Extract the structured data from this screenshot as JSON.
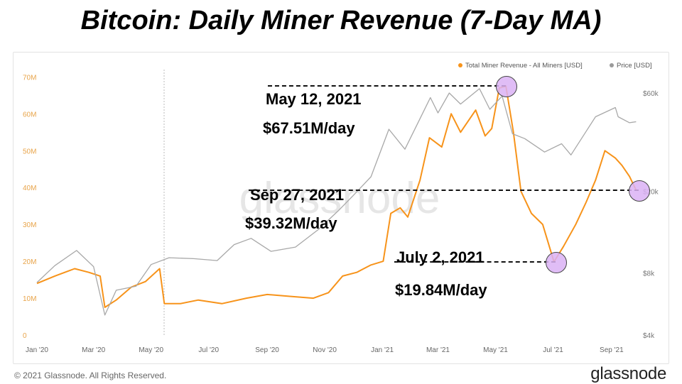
{
  "title": "Bitcoin: Daily Miner Revenue (7-Day MA)",
  "footer": {
    "copyright": "© 2021 Glassnode. All Rights Reserved.",
    "logo": "glassnode"
  },
  "watermark": "glassnode",
  "colors": {
    "revenue": "#f7931a",
    "price": "#a8a8a8",
    "highlight": "#dcb6f5",
    "annotation_line": "#111111"
  },
  "chart_data": {
    "type": "line",
    "legend": [
      {
        "name": "Total Miner Revenue - All Miners [USD]",
        "color": "#f7931a"
      },
      {
        "name": "Price [USD]",
        "color": "#9a9a9a"
      }
    ],
    "legend_position": "top-right",
    "x_ticks": [
      "Jan '20",
      "Mar '20",
      "May '20",
      "Jul '20",
      "Sep '20",
      "Nov '20",
      "Jan '21",
      "Mar '21",
      "May '21",
      "Jul '21",
      "Sep '21"
    ],
    "y_left": {
      "ticks": [
        "0",
        "10M",
        "20M",
        "30M",
        "40M",
        "50M",
        "60M",
        "70M"
      ],
      "range": [
        0,
        72000000
      ]
    },
    "y_right": {
      "ticks": [
        "$4k",
        "$8k",
        "$20k",
        "$60k"
      ],
      "scale": "log"
    },
    "series": [
      {
        "name": "Total Miner Revenue - All Miners [USD]",
        "axis": "left",
        "points": [
          [
            "2020-01-01",
            14.0
          ],
          [
            "2020-01-20",
            16.0
          ],
          [
            "2020-02-10",
            18.0
          ],
          [
            "2020-02-25",
            17.0
          ],
          [
            "2020-03-08",
            16.0
          ],
          [
            "2020-03-13",
            7.5
          ],
          [
            "2020-03-25",
            9.5
          ],
          [
            "2020-04-10",
            13.0
          ],
          [
            "2020-04-25",
            14.5
          ],
          [
            "2020-05-10",
            18.0
          ],
          [
            "2020-05-15",
            8.5
          ],
          [
            "2020-06-01",
            8.5
          ],
          [
            "2020-06-20",
            9.5
          ],
          [
            "2020-07-15",
            8.5
          ],
          [
            "2020-08-10",
            10.0
          ],
          [
            "2020-09-01",
            11.0
          ],
          [
            "2020-09-25",
            10.5
          ],
          [
            "2020-10-20",
            10.0
          ],
          [
            "2020-11-05",
            11.5
          ],
          [
            "2020-11-20",
            16.0
          ],
          [
            "2020-12-05",
            17.0
          ],
          [
            "2020-12-20",
            19.0
          ],
          [
            "2021-01-02",
            20.0
          ],
          [
            "2021-01-10",
            33.0
          ],
          [
            "2021-01-20",
            34.5
          ],
          [
            "2021-01-28",
            32.0
          ],
          [
            "2021-02-10",
            42.0
          ],
          [
            "2021-02-20",
            53.5
          ],
          [
            "2021-03-05",
            51.0
          ],
          [
            "2021-03-15",
            60.0
          ],
          [
            "2021-03-25",
            55.0
          ],
          [
            "2021-04-10",
            61.0
          ],
          [
            "2021-04-20",
            54.0
          ],
          [
            "2021-04-27",
            56.0
          ],
          [
            "2021-05-05",
            67.0
          ],
          [
            "2021-05-12",
            67.51
          ],
          [
            "2021-05-20",
            55.0
          ],
          [
            "2021-05-28",
            39.0
          ],
          [
            "2021-06-08",
            33.0
          ],
          [
            "2021-06-20",
            30.0
          ],
          [
            "2021-07-02",
            19.84
          ],
          [
            "2021-07-12",
            24.0
          ],
          [
            "2021-07-25",
            30.0
          ],
          [
            "2021-08-05",
            36.0
          ],
          [
            "2021-08-15",
            42.0
          ],
          [
            "2021-08-25",
            50.0
          ],
          [
            "2021-09-05",
            48.0
          ],
          [
            "2021-09-12",
            46.0
          ],
          [
            "2021-09-20",
            43.0
          ],
          [
            "2021-09-27",
            39.32
          ]
        ]
      },
      {
        "name": "Price [USD]",
        "axis": "right",
        "points": [
          [
            "2020-01-01",
            7200
          ],
          [
            "2020-01-20",
            8700
          ],
          [
            "2020-02-12",
            10300
          ],
          [
            "2020-03-01",
            8600
          ],
          [
            "2020-03-13",
            5000
          ],
          [
            "2020-03-25",
            6600
          ],
          [
            "2020-04-15",
            6900
          ],
          [
            "2020-05-01",
            8800
          ],
          [
            "2020-05-20",
            9500
          ],
          [
            "2020-06-15",
            9400
          ],
          [
            "2020-07-10",
            9200
          ],
          [
            "2020-07-28",
            11000
          ],
          [
            "2020-08-15",
            11800
          ],
          [
            "2020-09-05",
            10200
          ],
          [
            "2020-10-01",
            10700
          ],
          [
            "2020-10-25",
            13000
          ],
          [
            "2020-11-15",
            16000
          ],
          [
            "2020-12-01",
            19000
          ],
          [
            "2020-12-20",
            23500
          ],
          [
            "2021-01-08",
            40000
          ],
          [
            "2021-01-25",
            32000
          ],
          [
            "2021-02-10",
            45000
          ],
          [
            "2021-02-21",
            57000
          ],
          [
            "2021-03-01",
            48000
          ],
          [
            "2021-03-13",
            60000
          ],
          [
            "2021-03-25",
            53000
          ],
          [
            "2021-04-14",
            63000
          ],
          [
            "2021-04-25",
            50000
          ],
          [
            "2021-05-08",
            58000
          ],
          [
            "2021-05-19",
            38000
          ],
          [
            "2021-06-01",
            36000
          ],
          [
            "2021-06-22",
            31000
          ],
          [
            "2021-07-10",
            34000
          ],
          [
            "2021-07-20",
            30000
          ],
          [
            "2021-08-05",
            39000
          ],
          [
            "2021-08-15",
            46000
          ],
          [
            "2021-09-05",
            51000
          ],
          [
            "2021-09-08",
            46000
          ],
          [
            "2021-09-20",
            43000
          ],
          [
            "2021-09-27",
            43500
          ]
        ]
      }
    ],
    "annotations": [
      {
        "date_label": "May 12, 2021",
        "value_label": "$67.51M/day",
        "date": "2021-05-12",
        "value": 67.51
      },
      {
        "date_label": "Sep 27, 2021",
        "value_label": "$39.32M/day",
        "date": "2021-09-27",
        "value": 39.32
      },
      {
        "date_label": "July 2, 2021",
        "value_label": "$19.84M/day",
        "date": "2021-07-02",
        "value": 19.84
      }
    ]
  }
}
